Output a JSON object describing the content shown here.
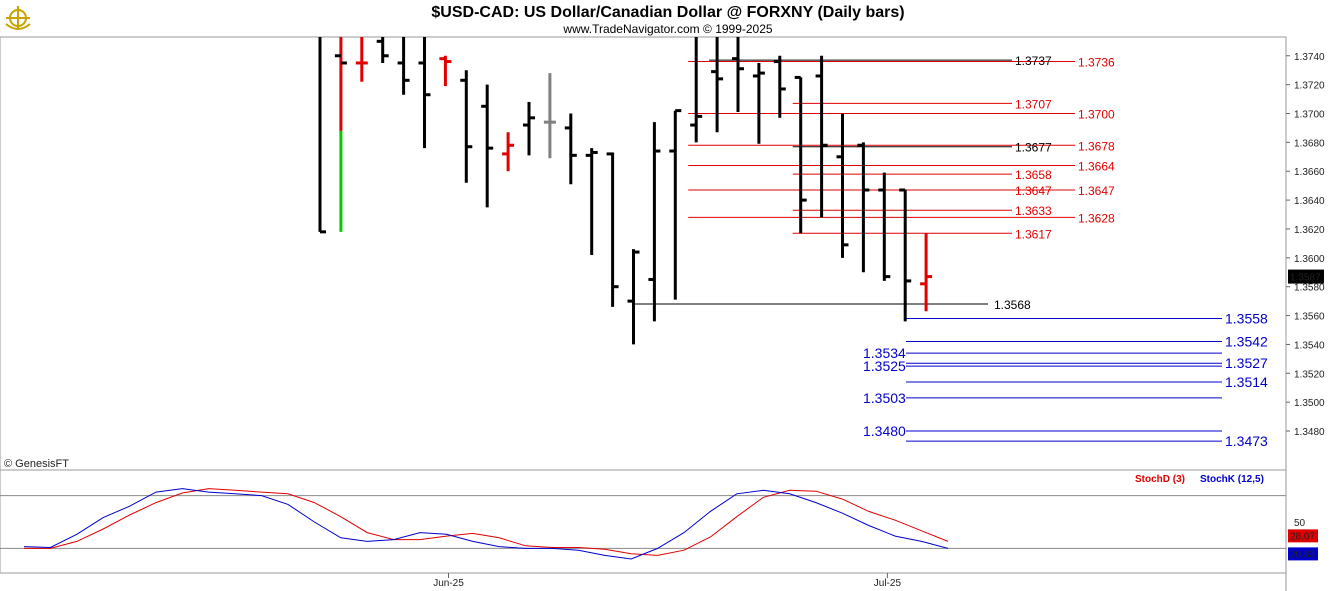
{
  "header": {
    "title": "$USD-CAD:  US Dollar/Canadian Dollar @ FORXNY  (Daily bars)",
    "subtitle": "www.TradeNavigator.com © 1999-2025",
    "logo_icon": "ship-wheel-logo-icon"
  },
  "watermark": "© GenesisFT",
  "colors": {
    "bar": "#000000",
    "down_bar": "#e00000",
    "up_green": "#00cc00",
    "neutral": "#808080",
    "resistance": "#e00000",
    "support": "#0000cc",
    "stochD": "#e00000",
    "stochK": "#0000cc",
    "last_price_bg": "#000000",
    "stochD_badge_bg": "#e00000",
    "stochK_badge_bg": "#0000cc"
  },
  "chart_data": [
    {
      "type": "ohlc",
      "title": "$USD-CAD:  US Dollar/Canadian Dollar @ FORXNY  (Daily bars)",
      "ylim": [
        1.3453,
        1.3753
      ],
      "y_ticks": [
        "1.3740",
        "1.3720",
        "1.3700",
        "1.3680",
        "1.3660",
        "1.3640",
        "1.3620",
        "1.3600",
        "1.3580",
        "1.3560",
        "1.3540",
        "1.3520",
        "1.3500",
        "1.3480"
      ],
      "x_labels": [
        {
          "label": "Jun-25",
          "bar_index": 5
        },
        {
          "label": "Jul-25",
          "bar_index": 26
        }
      ],
      "last_price": "1.3587",
      "bars": [
        {
          "o": 1.376,
          "h": 1.379,
          "l": 1.3618,
          "c": 1.3618,
          "color": "black"
        },
        {
          "o": 1.374,
          "h": 1.378,
          "l": 1.3618,
          "c": 1.3735,
          "color": "black",
          "segments": [
            {
              "from": 1.3618,
              "to": 1.3688,
              "color": "green"
            },
            {
              "from": 1.3688,
              "to": 1.379,
              "color": "red"
            }
          ]
        },
        {
          "o": 1.3735,
          "h": 1.376,
          "l": 1.3722,
          "c": 1.3735,
          "color": "red"
        },
        {
          "o": 1.375,
          "h": 1.377,
          "l": 1.3735,
          "c": 1.374,
          "color": "black"
        },
        {
          "o": 1.3735,
          "h": 1.378,
          "l": 1.3713,
          "c": 1.3723,
          "color": "black"
        },
        {
          "o": 1.3735,
          "h": 1.3765,
          "l": 1.3676,
          "c": 1.3713,
          "color": "black"
        },
        {
          "o": 1.3738,
          "h": 1.374,
          "l": 1.3719,
          "c": 1.3736,
          "color": "red"
        },
        {
          "o": 1.3723,
          "h": 1.373,
          "l": 1.3652,
          "c": 1.3677,
          "color": "black"
        },
        {
          "o": 1.3705,
          "h": 1.372,
          "l": 1.3635,
          "c": 1.3676,
          "color": "black"
        },
        {
          "o": 1.3672,
          "h": 1.3687,
          "l": 1.366,
          "c": 1.3678,
          "color": "red"
        },
        {
          "o": 1.3692,
          "h": 1.3708,
          "l": 1.3671,
          "c": 1.3697,
          "color": "black"
        },
        {
          "o": 1.3694,
          "h": 1.3728,
          "l": 1.3669,
          "c": 1.3694,
          "color": "gray"
        },
        {
          "o": 1.369,
          "h": 1.37,
          "l": 1.3651,
          "c": 1.3671,
          "color": "black"
        },
        {
          "o": 1.3671,
          "h": 1.3676,
          "l": 1.3602,
          "c": 1.3673,
          "color": "black"
        },
        {
          "o": 1.3672,
          "h": 1.3673,
          "l": 1.3566,
          "c": 1.358,
          "color": "black"
        },
        {
          "o": 1.357,
          "h": 1.3606,
          "l": 1.354,
          "c": 1.3604,
          "color": "black"
        },
        {
          "o": 1.3585,
          "h": 1.3694,
          "l": 1.3556,
          "c": 1.3674,
          "color": "black"
        },
        {
          "o": 1.3674,
          "h": 1.3702,
          "l": 1.3571,
          "c": 1.3702,
          "color": "black"
        },
        {
          "o": 1.3692,
          "h": 1.379,
          "l": 1.368,
          "c": 1.3698,
          "color": "black"
        },
        {
          "o": 1.3729,
          "h": 1.379,
          "l": 1.3687,
          "c": 1.3724,
          "color": "black"
        },
        {
          "o": 1.3738,
          "h": 1.379,
          "l": 1.3701,
          "c": 1.3731,
          "color": "black"
        },
        {
          "o": 1.3726,
          "h": 1.3735,
          "l": 1.3679,
          "c": 1.3728,
          "color": "black"
        },
        {
          "o": 1.3736,
          "h": 1.374,
          "l": 1.3697,
          "c": 1.3717,
          "color": "black"
        },
        {
          "o": 1.3725,
          "h": 1.3725,
          "l": 1.3617,
          "c": 1.364,
          "color": "black"
        },
        {
          "o": 1.3726,
          "h": 1.374,
          "l": 1.3628,
          "c": 1.3678,
          "color": "black"
        },
        {
          "o": 1.367,
          "h": 1.37,
          "l": 1.36,
          "c": 1.3609,
          "color": "black"
        },
        {
          "o": 1.3678,
          "h": 1.368,
          "l": 1.359,
          "c": 1.3647,
          "color": "black"
        },
        {
          "o": 1.3647,
          "h": 1.3659,
          "l": 1.3584,
          "c": 1.3587,
          "color": "black"
        },
        {
          "o": 1.3647,
          "h": 1.3647,
          "l": 1.3556,
          "c": 1.3584,
          "color": "black"
        },
        {
          "o": 1.3582,
          "h": 1.3617,
          "l": 1.3563,
          "c": 1.3587,
          "color": "red"
        }
      ],
      "levels": [
        {
          "price": 1.3737,
          "label": "1.3737",
          "color": "black",
          "from_bar": 19,
          "to_bar": 30
        },
        {
          "price": 1.3736,
          "label": "1.3736",
          "color": "red",
          "from_bar": 18,
          "to_bar": 30
        },
        {
          "price": 1.3707,
          "label": "1.3707",
          "color": "red",
          "from_bar": 23,
          "to_bar": 30
        },
        {
          "price": 1.37,
          "label": "1.3700",
          "color": "red",
          "from_bar": 18,
          "to_bar": 30
        },
        {
          "price": 1.3677,
          "label": "1.3677",
          "color": "black",
          "from_bar": 23,
          "to_bar": 30
        },
        {
          "price": 1.3678,
          "label": "1.3678",
          "color": "red",
          "from_bar": 18,
          "to_bar": 30
        },
        {
          "price": 1.3664,
          "label": "1.3664",
          "color": "red",
          "from_bar": 18,
          "to_bar": 30
        },
        {
          "price": 1.3658,
          "label": "1.3658",
          "color": "red",
          "from_bar": 23,
          "to_bar": 30
        },
        {
          "price": 1.3647,
          "label": "1.3647",
          "color": "red",
          "from_bar": 18,
          "to_bar": 30
        },
        {
          "price": 1.3647,
          "label": "1.3647",
          "color": "red",
          "from_bar": 23,
          "to_bar": 30,
          "dup": true
        },
        {
          "price": 1.3633,
          "label": "1.3633",
          "color": "red",
          "from_bar": 23,
          "to_bar": 30
        },
        {
          "price": 1.3628,
          "label": "1.3628",
          "color": "red",
          "from_bar": 18,
          "to_bar": 30
        },
        {
          "price": 1.3617,
          "label": "1.3617",
          "color": "red",
          "from_bar": 23,
          "to_bar": 30
        },
        {
          "price": 1.3568,
          "label": "1.3568",
          "color": "black",
          "from_bar": 15,
          "to_bar": 32
        },
        {
          "price": 1.3558,
          "label": "1.3558",
          "color": "blue",
          "from_bar": 28,
          "to_bar": 40
        },
        {
          "price": 1.3542,
          "label": "1.3542",
          "color": "blue",
          "from_bar": 28,
          "to_bar": 40
        },
        {
          "price": 1.3534,
          "label": "1.3534",
          "color": "blue",
          "from_bar": 28,
          "to_bar": 40,
          "label_left": true
        },
        {
          "price": 1.3527,
          "label": "1.3527",
          "color": "blue",
          "from_bar": 28,
          "to_bar": 40
        },
        {
          "price": 1.3525,
          "label": "1.3525",
          "color": "blue",
          "from_bar": 28,
          "to_bar": 40,
          "label_left": true
        },
        {
          "price": 1.3514,
          "label": "1.3514",
          "color": "blue",
          "from_bar": 28,
          "to_bar": 40
        },
        {
          "price": 1.3503,
          "label": "1.3503",
          "color": "blue",
          "from_bar": 28,
          "to_bar": 40,
          "label_left": true
        },
        {
          "price": 1.348,
          "label": "1.3480",
          "color": "blue",
          "from_bar": 28,
          "to_bar": 40,
          "label_left": true
        },
        {
          "price": 1.3473,
          "label": "1.3473",
          "color": "blue",
          "from_bar": 28,
          "to_bar": 40
        }
      ]
    },
    {
      "type": "line",
      "title": "",
      "ylim": [
        0,
        100
      ],
      "y_ticks": [
        "50"
      ],
      "ref_lines": [
        80,
        20
      ],
      "series": [
        {
          "name": "StochD (3)",
          "color": "red",
          "last_label": "28.07",
          "values": [
            20,
            20,
            28,
            42,
            58,
            72,
            83,
            88,
            86,
            84,
            82,
            72,
            56,
            38,
            30,
            30,
            34,
            37,
            32,
            23,
            21,
            21,
            19,
            14,
            12,
            18,
            33,
            56,
            78,
            86,
            85,
            76,
            62,
            52,
            40,
            28
          ]
        },
        {
          "name": "StochK (12,5)",
          "color": "blue",
          "last_label": "20.83",
          "values": [
            22,
            21,
            36,
            55,
            68,
            84,
            88,
            84,
            82,
            80,
            70,
            50,
            32,
            28,
            30,
            38,
            36,
            28,
            22,
            20,
            20,
            18,
            12,
            8,
            20,
            38,
            62,
            82,
            86,
            82,
            72,
            60,
            46,
            34,
            28,
            20
          ]
        }
      ]
    }
  ]
}
